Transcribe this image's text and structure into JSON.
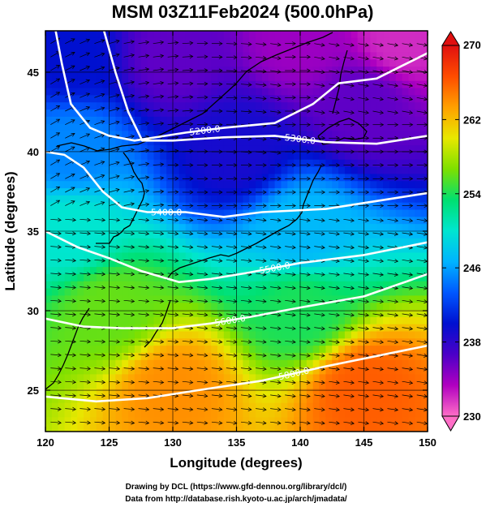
{
  "title": "MSM 03Z11Feb2024 (500.0hPa)",
  "xlabel": "Longitude (degrees)",
  "ylabel": "Latitude  (degrees)",
  "x_ticks": [
    "120",
    "125",
    "130",
    "135",
    "140",
    "145",
    "150"
  ],
  "y_ticks": [
    "25",
    "30",
    "35",
    "40",
    "45"
  ],
  "colorbar": {
    "min": 230,
    "max": 270,
    "ticks": [
      "270",
      "262",
      "254",
      "246",
      "238",
      "230"
    ],
    "stops": [
      "#ff6ec7",
      "#b000c0",
      "#4b00c8",
      "#0010d0",
      "#0058ff",
      "#00b4ff",
      "#00e6d0",
      "#00e070",
      "#7ee000",
      "#e8e800",
      "#ffa000",
      "#ff4c00",
      "#e01010"
    ]
  },
  "credits": {
    "line1": "Drawing by DCL (https://www.gfd-dennou.org/library/dcl/)",
    "line2": "Data from http://database.rish.kyoto-u.ac.jp/arch/jmadata/"
  },
  "chart_data": {
    "type": "heatmap",
    "title": "MSM 03Z11Feb2024 (500.0hPa)",
    "xlabel": "Longitude (degrees)",
    "ylabel": "Latitude  (degrees)",
    "xlim": [
      120,
      150
    ],
    "ylim": [
      22.4,
      47.6
    ],
    "color_range": [
      230,
      270
    ],
    "temperature_samples": [
      {
        "lon": 122,
        "lat": 46,
        "value": 240
      },
      {
        "lon": 130,
        "lat": 46,
        "value": 236
      },
      {
        "lon": 140,
        "lat": 47,
        "value": 234
      },
      {
        "lon": 148,
        "lat": 47,
        "value": 232
      },
      {
        "lon": 145,
        "lat": 43,
        "value": 236
      },
      {
        "lon": 122,
        "lat": 40,
        "value": 245
      },
      {
        "lon": 135,
        "lat": 40,
        "value": 239
      },
      {
        "lon": 122,
        "lat": 35,
        "value": 250
      },
      {
        "lon": 140,
        "lat": 35,
        "value": 247
      },
      {
        "lon": 125,
        "lat": 30,
        "value": 256
      },
      {
        "lon": 140,
        "lat": 30,
        "value": 254
      },
      {
        "lon": 130,
        "lat": 25,
        "value": 264
      },
      {
        "lon": 145,
        "lat": 25,
        "value": 266
      }
    ],
    "contours": [
      {
        "label": "5200.0",
        "points": [
          [
            120.8,
            47.6
          ],
          [
            121.3,
            45.5
          ],
          [
            122.0,
            43.0
          ],
          [
            123.5,
            41.5
          ],
          [
            125.0,
            41.0
          ],
          [
            127.0,
            40.7
          ],
          [
            131.0,
            41.2
          ],
          [
            134.0,
            41.5
          ],
          [
            138.0,
            41.8
          ],
          [
            141.0,
            43.0
          ],
          [
            143.0,
            44.3
          ],
          [
            146.0,
            44.6
          ],
          [
            148.0,
            45.4
          ],
          [
            150.0,
            46.2
          ]
        ]
      },
      {
        "label": "5300.0",
        "points": [
          [
            124.6,
            47.6
          ],
          [
            125.5,
            45.0
          ],
          [
            126.5,
            42.5
          ],
          [
            127.6,
            40.7
          ],
          [
            130.0,
            40.7
          ],
          [
            134.0,
            40.9
          ],
          [
            138.0,
            41.0
          ],
          [
            142.0,
            40.6
          ],
          [
            146.0,
            40.5
          ],
          [
            150.0,
            41.0
          ]
        ]
      },
      {
        "label": "5400.0",
        "points": [
          [
            120.0,
            40.0
          ],
          [
            121.5,
            39.8
          ],
          [
            123.0,
            39.0
          ],
          [
            124.5,
            37.5
          ],
          [
            126.0,
            36.5
          ],
          [
            128.0,
            36.2
          ],
          [
            131.0,
            36.2
          ],
          [
            134.0,
            35.9
          ],
          [
            137.0,
            36.2
          ],
          [
            142.0,
            36.4
          ],
          [
            146.0,
            36.9
          ],
          [
            150.0,
            37.4
          ]
        ]
      },
      {
        "label": "5500.0",
        "points": [
          [
            120.0,
            35.0
          ],
          [
            122.5,
            34.0
          ],
          [
            125.0,
            33.3
          ],
          [
            127.5,
            32.5
          ],
          [
            130.5,
            31.8
          ],
          [
            133.0,
            32.0
          ],
          [
            136.0,
            32.4
          ],
          [
            140.0,
            33.0
          ],
          [
            145.0,
            33.5
          ],
          [
            150.0,
            34.3
          ]
        ]
      },
      {
        "label": "5600.0",
        "points": [
          [
            120.0,
            29.5
          ],
          [
            123.0,
            29.0
          ],
          [
            126.0,
            28.9
          ],
          [
            130.0,
            28.9
          ],
          [
            133.0,
            29.2
          ],
          [
            136.0,
            29.6
          ],
          [
            140.0,
            30.2
          ],
          [
            145.0,
            30.9
          ],
          [
            150.0,
            32.3
          ]
        ]
      },
      {
        "label": "5800.0",
        "points": [
          [
            120.0,
            24.6
          ],
          [
            124.0,
            24.3
          ],
          [
            128.0,
            24.5
          ],
          [
            132.0,
            25.0
          ],
          [
            137.0,
            25.6
          ],
          [
            142.0,
            26.5
          ],
          [
            150.0,
            27.8
          ]
        ]
      }
    ],
    "wind_direction": "predominantly eastward with curved northwesterly inflow over the Sea of Japan"
  }
}
